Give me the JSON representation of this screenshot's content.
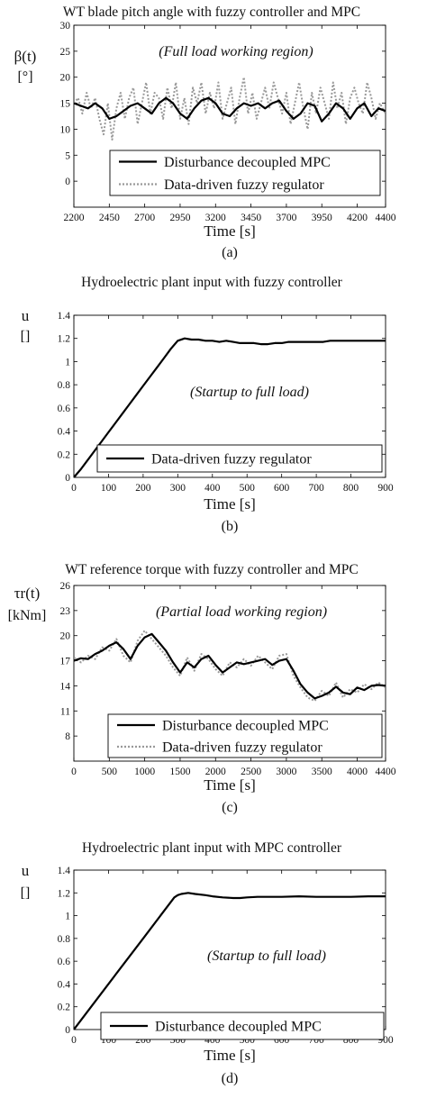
{
  "chart_data": [
    {
      "id": "a",
      "type": "line",
      "title": "WT blade pitch angle with fuzzy controller and MPC",
      "ylabel": "β(t)",
      "yunit": "[°]",
      "xlabel": "Time [s]",
      "caption": "(a)",
      "annotation": "(Full load working region)",
      "xlim": [
        2200,
        4400
      ],
      "ylim": [
        -5,
        30
      ],
      "xticks": [
        2200,
        2450,
        2700,
        2950,
        3200,
        3450,
        3700,
        3950,
        4200,
        4400
      ],
      "yticks": [
        0,
        5,
        10,
        15,
        20,
        25,
        30
      ],
      "legend_position": "bottom-right",
      "series": [
        {
          "name": "Disturbance decoupled MPC",
          "color": "#000000",
          "dash": "solid",
          "x": [
            2200,
            2250,
            2300,
            2350,
            2400,
            2450,
            2500,
            2550,
            2600,
            2650,
            2700,
            2750,
            2800,
            2850,
            2900,
            2950,
            3000,
            3050,
            3100,
            3150,
            3200,
            3250,
            3300,
            3350,
            3400,
            3450,
            3500,
            3550,
            3600,
            3650,
            3700,
            3750,
            3800,
            3850,
            3900,
            3950,
            4000,
            4050,
            4100,
            4150,
            4200,
            4250,
            4300,
            4350,
            4400
          ],
          "y": [
            15,
            14.5,
            14,
            15,
            14,
            12,
            12.5,
            13.5,
            14.5,
            15,
            14,
            13,
            15,
            16,
            15,
            13,
            12,
            14,
            15.5,
            16,
            15,
            13,
            12.5,
            14,
            15,
            14.5,
            15,
            14,
            15,
            15.5,
            13.5,
            12,
            13,
            15,
            14.5,
            11.5,
            13,
            15,
            14,
            12,
            14,
            15,
            12.5,
            14,
            13.5
          ]
        },
        {
          "name": "Data-driven fuzzy regulator",
          "color": "#999999",
          "dash": "dotted",
          "x": [
            2200,
            2230,
            2260,
            2290,
            2320,
            2350,
            2380,
            2410,
            2440,
            2470,
            2500,
            2530,
            2560,
            2590,
            2620,
            2650,
            2680,
            2710,
            2740,
            2770,
            2800,
            2830,
            2860,
            2890,
            2920,
            2950,
            2980,
            3010,
            3040,
            3070,
            3100,
            3130,
            3160,
            3190,
            3220,
            3250,
            3280,
            3310,
            3340,
            3370,
            3400,
            3430,
            3460,
            3490,
            3520,
            3550,
            3580,
            3610,
            3640,
            3670,
            3700,
            3730,
            3760,
            3790,
            3820,
            3850,
            3880,
            3910,
            3940,
            3970,
            4000,
            4030,
            4060,
            4090,
            4120,
            4150,
            4180,
            4210,
            4240,
            4270,
            4300,
            4330,
            4360,
            4400
          ],
          "y": [
            15,
            16,
            13,
            17,
            14,
            16,
            12,
            9,
            15,
            8,
            14,
            17,
            12,
            16,
            18,
            11,
            15,
            19,
            13,
            17,
            16,
            12,
            18,
            14,
            19,
            12,
            16,
            11,
            18,
            15,
            19,
            13,
            17,
            14,
            19,
            12,
            15,
            18,
            11,
            16,
            20,
            13,
            17,
            12,
            15,
            18,
            14,
            19,
            16,
            13,
            17,
            11,
            15,
            19,
            14,
            10,
            17,
            13,
            18,
            15,
            12,
            19,
            14,
            17,
            11,
            16,
            18,
            15,
            13,
            19,
            16,
            12,
            15,
            13
          ]
        }
      ]
    },
    {
      "id": "b",
      "type": "line",
      "title": "Hydroelectric plant input with fuzzy controller",
      "ylabel": "u",
      "yunit": "[]",
      "xlabel": "Time [s]",
      "caption": "(b)",
      "annotation": "(Startup to full load)",
      "xlim": [
        0,
        900
      ],
      "ylim": [
        0,
        1.4
      ],
      "xticks": [
        0,
        100,
        200,
        300,
        400,
        500,
        600,
        700,
        800,
        900
      ],
      "yticks": [
        0,
        0.2,
        0.4,
        0.6,
        0.8,
        1,
        1.2,
        1.4
      ],
      "legend_position": "bottom-right",
      "series": [
        {
          "name": "Data-driven fuzzy regulator",
          "color": "#000000",
          "dash": "solid",
          "x": [
            0,
            20,
            40,
            60,
            80,
            100,
            120,
            140,
            160,
            180,
            200,
            220,
            240,
            260,
            280,
            300,
            320,
            340,
            360,
            380,
            400,
            420,
            440,
            460,
            480,
            500,
            520,
            540,
            560,
            580,
            600,
            620,
            640,
            660,
            680,
            700,
            720,
            740,
            760,
            780,
            800,
            820,
            840,
            860,
            880,
            900
          ],
          "y": [
            0,
            0.07,
            0.15,
            0.23,
            0.31,
            0.39,
            0.47,
            0.55,
            0.63,
            0.71,
            0.79,
            0.87,
            0.95,
            1.03,
            1.11,
            1.18,
            1.2,
            1.19,
            1.19,
            1.18,
            1.18,
            1.17,
            1.18,
            1.17,
            1.16,
            1.16,
            1.16,
            1.15,
            1.15,
            1.16,
            1.16,
            1.17,
            1.17,
            1.17,
            1.17,
            1.17,
            1.17,
            1.18,
            1.18,
            1.18,
            1.18,
            1.18,
            1.18,
            1.18,
            1.18,
            1.18
          ]
        }
      ]
    },
    {
      "id": "c",
      "type": "line",
      "title": "WT reference torque with fuzzy controller and MPC",
      "ylabel": "τr(t)",
      "yunit": "[kNm]",
      "xlabel": "Time [s]",
      "caption": "(c)",
      "annotation": "(Partial load working region)",
      "xlim": [
        0,
        4400
      ],
      "ylim": [
        5,
        26
      ],
      "xticks": [
        0,
        500,
        1000,
        1500,
        2000,
        2500,
        3000,
        3500,
        4000,
        4400
      ],
      "yticks": [
        8,
        11,
        14,
        17,
        20,
        23,
        26
      ],
      "legend_position": "bottom-right",
      "series": [
        {
          "name": "Disturbance decoupled MPC",
          "color": "#000000",
          "dash": "solid",
          "x": [
            0,
            100,
            200,
            300,
            400,
            500,
            600,
            700,
            800,
            900,
            1000,
            1100,
            1200,
            1300,
            1400,
            1500,
            1600,
            1700,
            1800,
            1900,
            2000,
            2100,
            2200,
            2300,
            2400,
            2500,
            2600,
            2700,
            2800,
            2900,
            3000,
            3100,
            3200,
            3300,
            3400,
            3500,
            3600,
            3700,
            3800,
            3900,
            4000,
            4100,
            4200,
            4300,
            4400
          ],
          "y": [
            17,
            17.3,
            17.2,
            17.8,
            18.2,
            18.8,
            19.2,
            18.4,
            17.2,
            18.8,
            19.8,
            20.2,
            19.2,
            18.2,
            16.8,
            15.6,
            16.8,
            16.2,
            17.2,
            17.6,
            16.5,
            15.6,
            16.2,
            16.8,
            16.6,
            16.8,
            17,
            17.2,
            16.5,
            17,
            17.2,
            15.8,
            14.2,
            13.2,
            12.5,
            12.8,
            13.2,
            13.9,
            13.2,
            13,
            13.8,
            13.5,
            14,
            14.1,
            14
          ]
        },
        {
          "name": "Data-driven fuzzy regulator",
          "color": "#999999",
          "dash": "dotted",
          "x": [
            0,
            100,
            200,
            300,
            400,
            500,
            600,
            700,
            800,
            900,
            1000,
            1100,
            1200,
            1300,
            1400,
            1500,
            1600,
            1700,
            1800,
            1900,
            2000,
            2100,
            2200,
            2300,
            2400,
            2500,
            2600,
            2700,
            2800,
            2900,
            3000,
            3100,
            3200,
            3300,
            3400,
            3500,
            3600,
            3700,
            3800,
            3900,
            4000,
            4100,
            4200,
            4300,
            4400
          ],
          "y": [
            17.4,
            16.8,
            17.6,
            17.2,
            18.6,
            18.2,
            19.6,
            17.6,
            16.8,
            19.4,
            20.6,
            19.6,
            18.6,
            17.6,
            16.2,
            15.2,
            17.4,
            15.8,
            17.8,
            17.2,
            16,
            15.2,
            16.8,
            16.2,
            17.2,
            16.4,
            17.6,
            16.8,
            16,
            17.6,
            17.8,
            15.2,
            13.8,
            12.6,
            12.2,
            13.4,
            12.8,
            14.4,
            12.6,
            13.6,
            13.2,
            14.2,
            13.6,
            14.4,
            13.8
          ]
        }
      ]
    },
    {
      "id": "d",
      "type": "line",
      "title": "Hydroelectric plant input with MPC controller",
      "ylabel": "u",
      "yunit": "[]",
      "xlabel": "Time [s]",
      "caption": "(d)",
      "annotation": "(Startup to full load)",
      "xlim": [
        0,
        900
      ],
      "ylim": [
        0,
        1.4
      ],
      "xticks": [
        0,
        100,
        200,
        300,
        400,
        500,
        600,
        700,
        800,
        900
      ],
      "yticks": [
        0,
        0.2,
        0.4,
        0.6,
        0.8,
        1,
        1.2,
        1.4
      ],
      "legend_position": "bottom-right",
      "series": [
        {
          "name": "Disturbance decoupled MPC",
          "color": "#000000",
          "dash": "solid",
          "x": [
            0,
            50,
            100,
            150,
            200,
            250,
            290,
            300,
            310,
            330,
            350,
            380,
            400,
            430,
            460,
            480,
            500,
            530,
            560,
            600,
            650,
            700,
            750,
            800,
            850,
            900
          ],
          "y": [
            0,
            0.2,
            0.4,
            0.6,
            0.8,
            1,
            1.16,
            1.18,
            1.19,
            1.2,
            1.19,
            1.18,
            1.17,
            1.16,
            1.155,
            1.155,
            1.16,
            1.165,
            1.165,
            1.165,
            1.17,
            1.165,
            1.165,
            1.165,
            1.17,
            1.17
          ]
        }
      ]
    }
  ]
}
